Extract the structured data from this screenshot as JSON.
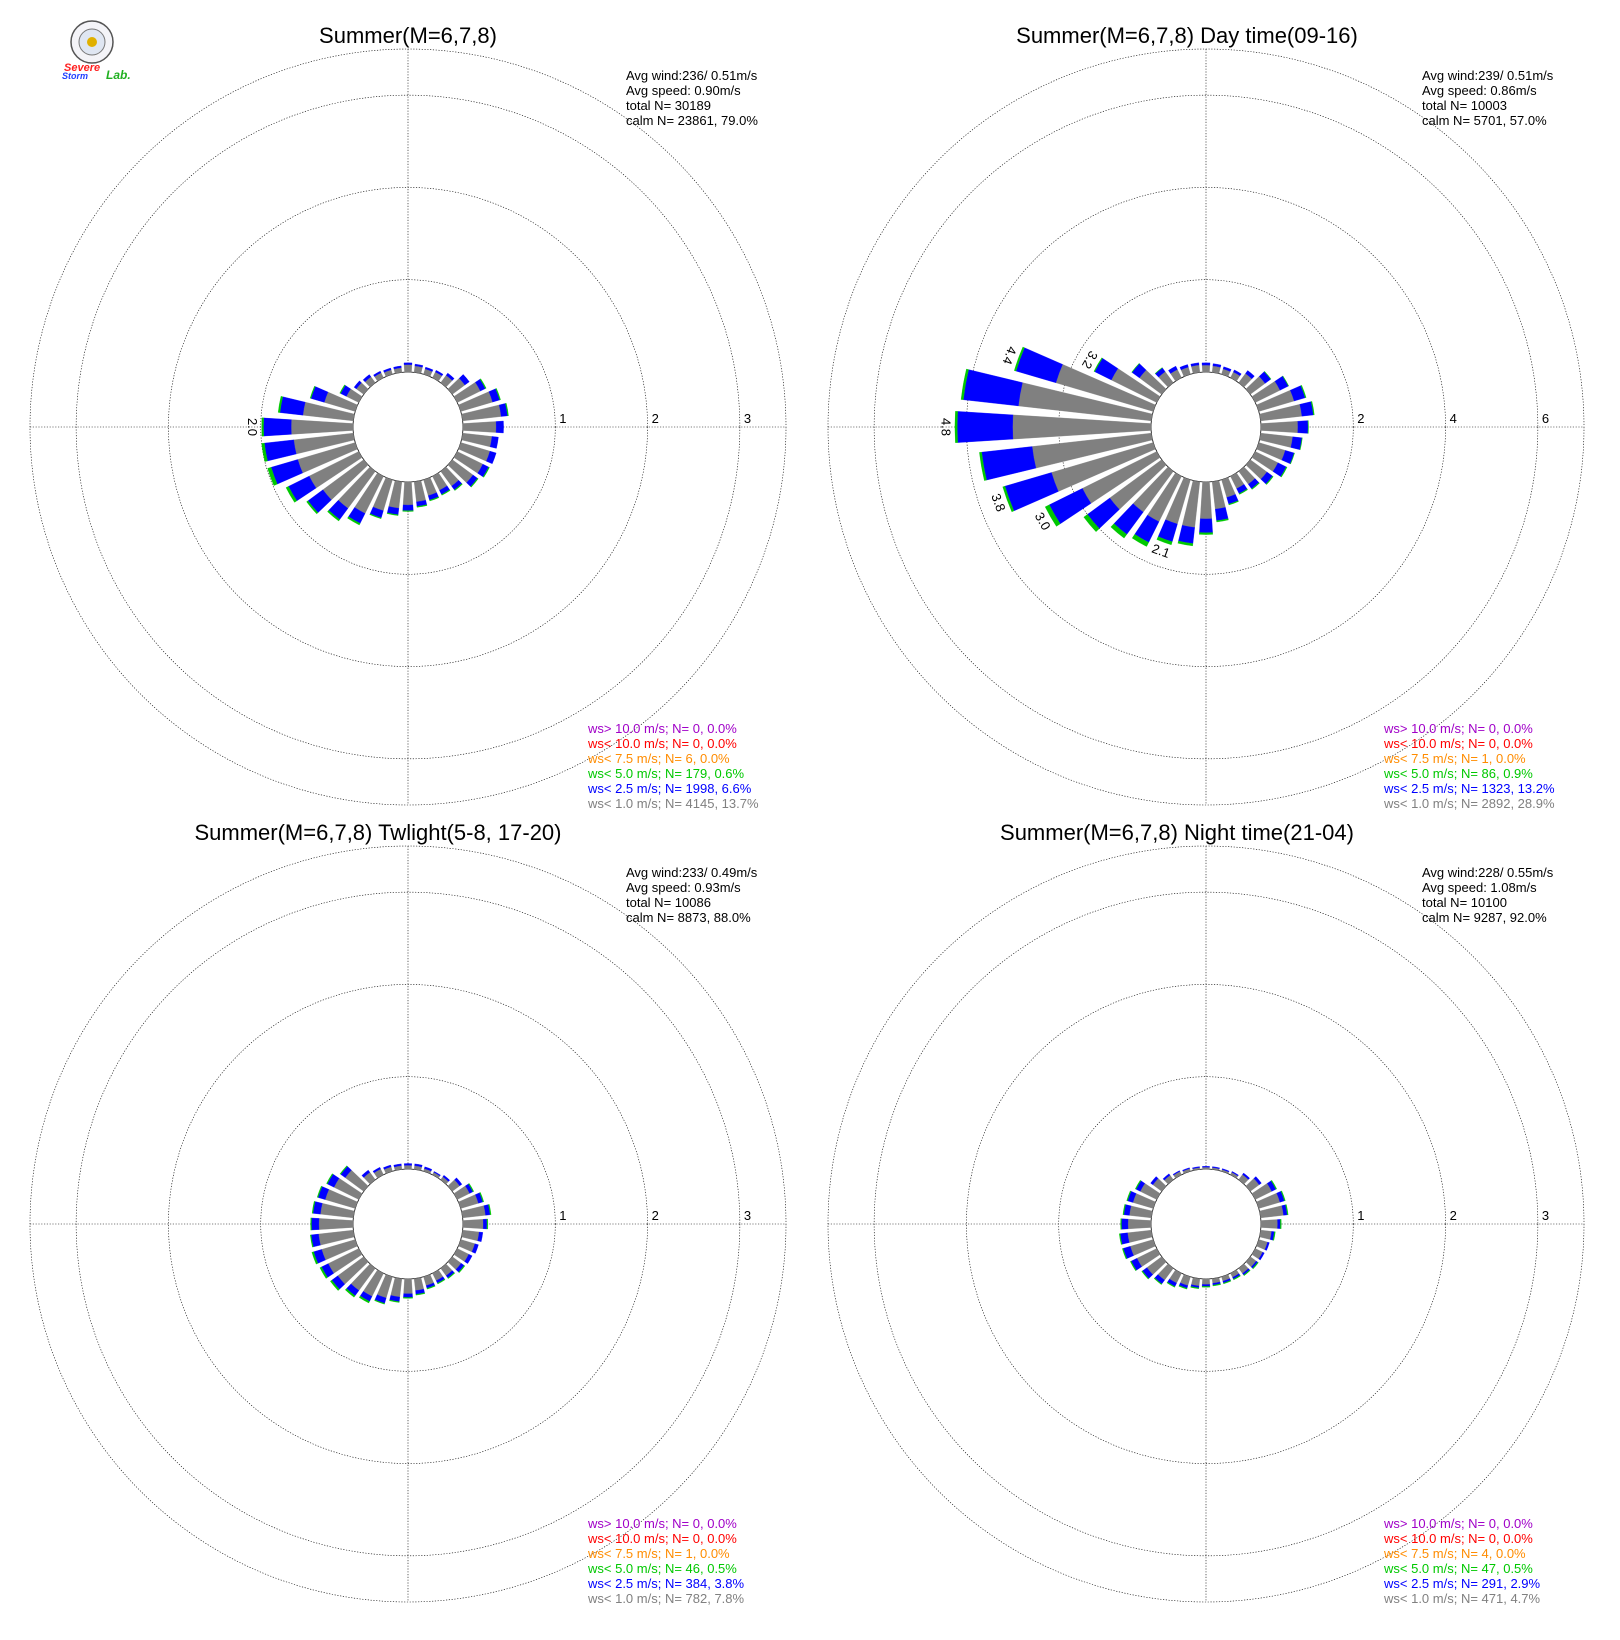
{
  "logo": {
    "word1": "Severe",
    "word2": "Storm",
    "word3": "Lab."
  },
  "chart_data": [
    {
      "type": "windrose",
      "title": "Summer(M=6,7,8)",
      "stats": {
        "avg_wind": "Avg wind:236/ 0.51m/s",
        "avg_speed": "Avg speed: 0.90m/s",
        "total": "total N=      30189",
        "calm": "calm N=  23861,  79.0%"
      },
      "radial_ticks": [
        "1",
        "2",
        "3"
      ],
      "rmax": 3.5,
      "bar_labels": [
        {
          "direction_deg": 270,
          "text": "2.0"
        }
      ],
      "legend": [
        {
          "text": "ws> 10.0 m/s; N=     0,  0.0%",
          "color": "#a000c8"
        },
        {
          "text": "ws< 10.0 m/s; N=     0,  0.0%",
          "color": "#ff0000"
        },
        {
          "text": "ws<  7.5 m/s; N=     6,  0.0%",
          "color": "#ff8c00"
        },
        {
          "text": "ws<  5.0 m/s; N=   179,  0.6%",
          "color": "#00c800"
        },
        {
          "text": "ws<  2.5 m/s; N=  1998,  6.6%",
          "color": "#0000ff"
        },
        {
          "text": "ws<  1.0 m/s; N=  4145, 13.7%",
          "color": "#808080"
        }
      ],
      "sectors": [
        [
          0.08,
          0.02,
          0
        ],
        [
          0.07,
          0.02,
          0
        ],
        [
          0.06,
          0.02,
          0
        ],
        [
          0.07,
          0.02,
          0
        ],
        [
          0.1,
          0.03,
          0
        ],
        [
          0.17,
          0.06,
          0
        ],
        [
          0.28,
          0.06,
          0.01
        ],
        [
          0.36,
          0.08,
          0.01
        ],
        [
          0.42,
          0.07,
          0.01
        ],
        [
          0.36,
          0.08,
          0
        ],
        [
          0.32,
          0.07,
          0
        ],
        [
          0.33,
          0.07,
          0
        ],
        [
          0.31,
          0.07,
          0.01
        ],
        [
          0.28,
          0.06,
          0.01
        ],
        [
          0.2,
          0.05,
          0.01
        ],
        [
          0.17,
          0.05,
          0.01
        ],
        [
          0.18,
          0.05,
          0.01
        ],
        [
          0.22,
          0.05,
          0.01
        ],
        [
          0.25,
          0.06,
          0.01
        ],
        [
          0.29,
          0.07,
          0.01
        ],
        [
          0.35,
          0.08,
          0.01
        ],
        [
          0.45,
          0.12,
          0.02
        ],
        [
          0.5,
          0.15,
          0.02
        ],
        [
          0.55,
          0.2,
          0.02
        ],
        [
          0.6,
          0.25,
          0.03
        ],
        [
          0.65,
          0.3,
          0.04
        ],
        [
          0.65,
          0.32,
          0.03
        ],
        [
          0.67,
          0.3,
          0.02
        ],
        [
          0.55,
          0.25,
          0.02
        ],
        [
          0.35,
          0.15,
          0.01
        ],
        [
          0.15,
          0.07,
          0.01
        ],
        [
          0.1,
          0.03,
          0
        ],
        [
          0.08,
          0.03,
          0
        ],
        [
          0.06,
          0.02,
          0
        ],
        [
          0.05,
          0.02,
          0
        ],
        [
          0.05,
          0.02,
          0
        ]
      ]
    },
    {
      "type": "windrose",
      "title": "Summer(M=6,7,8) Day time(09-16)",
      "stats": {
        "avg_wind": "Avg wind:239/ 0.51m/s",
        "avg_speed": "Avg speed: 0.86m/s",
        "total": "total N=      10003",
        "calm": "calm N=   5701,  57.0%"
      },
      "radial_ticks": [
        "2",
        "4",
        "6"
      ],
      "rmax": 7,
      "bar_labels": [
        {
          "direction_deg": 200,
          "text": "2.1"
        },
        {
          "direction_deg": 240,
          "text": "3.0"
        },
        {
          "direction_deg": 250,
          "text": "3.8"
        },
        {
          "direction_deg": 270,
          "text": "4.8"
        },
        {
          "direction_deg": 290,
          "text": "4.4"
        },
        {
          "direction_deg": 300,
          "text": "3.2"
        }
      ],
      "legend": [
        {
          "text": "ws> 10.0 m/s; N=     0,  0.0%",
          "color": "#a000c8"
        },
        {
          "text": "ws< 10.0 m/s; N=     0,  0.0%",
          "color": "#ff0000"
        },
        {
          "text": "ws<  7.5 m/s; N=     1,  0.0%",
          "color": "#ff8c00"
        },
        {
          "text": "ws<  5.0 m/s; N=    86,  0.9%",
          "color": "#00c800"
        },
        {
          "text": "ws<  2.5 m/s; N=  1323, 13.2%",
          "color": "#0000ff"
        },
        {
          "text": "ws<  1.0 m/s; N=  2892, 28.9%",
          "color": "#808080"
        }
      ],
      "sectors": [
        [
          0.15,
          0.05,
          0
        ],
        [
          0.14,
          0.05,
          0
        ],
        [
          0.12,
          0.05,
          0
        ],
        [
          0.14,
          0.05,
          0
        ],
        [
          0.25,
          0.08,
          0
        ],
        [
          0.4,
          0.15,
          0.01
        ],
        [
          0.6,
          0.2,
          0.01
        ],
        [
          0.8,
          0.25,
          0.02
        ],
        [
          0.9,
          0.25,
          0.02
        ],
        [
          0.8,
          0.22,
          0.01
        ],
        [
          0.7,
          0.2,
          0.01
        ],
        [
          0.6,
          0.2,
          0.01
        ],
        [
          0.55,
          0.2,
          0.02
        ],
        [
          0.45,
          0.15,
          0.02
        ],
        [
          0.35,
          0.12,
          0.02
        ],
        [
          0.3,
          0.12,
          0.02
        ],
        [
          0.4,
          0.15,
          0.02
        ],
        [
          0.6,
          0.25,
          0.03
        ],
        [
          0.8,
          0.3,
          0.04
        ],
        [
          1.0,
          0.35,
          0.05
        ],
        [
          1.0,
          0.4,
          0.07
        ],
        [
          1.1,
          0.5,
          0.1
        ],
        [
          1.1,
          0.6,
          0.1
        ],
        [
          1.4,
          0.6,
          0.1
        ],
        [
          1.8,
          0.8,
          0.1
        ],
        [
          2.3,
          1.05,
          0.05
        ],
        [
          2.6,
          1.1,
          0.05
        ],
        [
          3.0,
          1.2,
          0.05
        ],
        [
          2.9,
          1.2,
          0.05
        ],
        [
          2.2,
          0.9,
          0.04
        ],
        [
          1.1,
          0.4,
          0.02
        ],
        [
          0.6,
          0.2,
          0.01
        ],
        [
          0.3,
          0.1,
          0.01
        ],
        [
          0.2,
          0.08,
          0
        ],
        [
          0.16,
          0.06,
          0
        ],
        [
          0.16,
          0.05,
          0
        ]
      ]
    },
    {
      "type": "windrose",
      "title": "Summer(M=6,7,8) Twlight(5-8, 17-20)",
      "stats": {
        "avg_wind": "Avg wind:233/ 0.49m/s",
        "avg_speed": "Avg speed: 0.93m/s",
        "total": "total N=      10086",
        "calm": "calm N=   8873,  88.0%"
      },
      "radial_ticks": [
        "1",
        "2",
        "3"
      ],
      "rmax": 3.5,
      "bar_labels": [],
      "legend": [
        {
          "text": "ws> 10.0 m/s; N=     0,  0.0%",
          "color": "#a000c8"
        },
        {
          "text": "ws< 10.0 m/s; N=     0,  0.0%",
          "color": "#ff0000"
        },
        {
          "text": "ws<  7.5 m/s; N=     1,  0.0%",
          "color": "#ff8c00"
        },
        {
          "text": "ws<  5.0 m/s; N=    46,  0.5%",
          "color": "#00c800"
        },
        {
          "text": "ws<  2.5 m/s; N=   384,  3.8%",
          "color": "#0000ff"
        },
        {
          "text": "ws<  1.0 m/s; N=   782,  7.8%",
          "color": "#808080"
        }
      ],
      "sectors": [
        [
          0.04,
          0.02,
          0
        ],
        [
          0.04,
          0.02,
          0
        ],
        [
          0.03,
          0.02,
          0
        ],
        [
          0.03,
          0.01,
          0
        ],
        [
          0.04,
          0.02,
          0
        ],
        [
          0.1,
          0.03,
          0
        ],
        [
          0.15,
          0.04,
          0.01
        ],
        [
          0.2,
          0.05,
          0.01
        ],
        [
          0.25,
          0.05,
          0.01
        ],
        [
          0.22,
          0.04,
          0.01
        ],
        [
          0.18,
          0.04,
          0
        ],
        [
          0.16,
          0.04,
          0
        ],
        [
          0.14,
          0.04,
          0
        ],
        [
          0.12,
          0.04,
          0.01
        ],
        [
          0.1,
          0.03,
          0.01
        ],
        [
          0.09,
          0.03,
          0.01
        ],
        [
          0.1,
          0.03,
          0.01
        ],
        [
          0.13,
          0.04,
          0.01
        ],
        [
          0.16,
          0.04,
          0.01
        ],
        [
          0.2,
          0.05,
          0.01
        ],
        [
          0.24,
          0.06,
          0.01
        ],
        [
          0.28,
          0.06,
          0.02
        ],
        [
          0.3,
          0.07,
          0.02
        ],
        [
          0.35,
          0.08,
          0.02
        ],
        [
          0.37,
          0.08,
          0.02
        ],
        [
          0.38,
          0.09,
          0.02
        ],
        [
          0.38,
          0.08,
          0.01
        ],
        [
          0.37,
          0.08,
          0.01
        ],
        [
          0.36,
          0.08,
          0.01
        ],
        [
          0.34,
          0.08,
          0.01
        ],
        [
          0.3,
          0.08,
          0.01
        ],
        [
          0.25,
          0.06,
          0.01
        ],
        [
          0.1,
          0.03,
          0
        ],
        [
          0.07,
          0.02,
          0
        ],
        [
          0.05,
          0.02,
          0
        ],
        [
          0.04,
          0.02,
          0
        ]
      ]
    },
    {
      "type": "windrose",
      "title": "Summer(M=6,7,8) Night time(21-04)",
      "stats": {
        "avg_wind": "Avg wind:228/ 0.55m/s",
        "avg_speed": "Avg speed: 1.08m/s",
        "total": "total N=      10100",
        "calm": "calm N=   9287,  92.0%"
      },
      "radial_ticks": [
        "1",
        "2",
        "3"
      ],
      "rmax": 3.5,
      "bar_labels": [],
      "legend": [
        {
          "text": "ws> 10.0 m/s; N=     0,  0.0%",
          "color": "#a000c8"
        },
        {
          "text": "ws< 10.0 m/s; N=     0,  0.0%",
          "color": "#ff0000"
        },
        {
          "text": "ws<  7.5 m/s; N=     4,  0.0%",
          "color": "#ff8c00"
        },
        {
          "text": "ws<  5.0 m/s; N=    47,  0.5%",
          "color": "#00c800"
        },
        {
          "text": "ws<  2.5 m/s; N=   291,  2.9%",
          "color": "#0000ff"
        },
        {
          "text": "ws<  1.0 m/s; N=   471,  4.7%",
          "color": "#808080"
        }
      ],
      "sectors": [
        [
          0.02,
          0.01,
          0
        ],
        [
          0.02,
          0.01,
          0
        ],
        [
          0.02,
          0.01,
          0
        ],
        [
          0.03,
          0.01,
          0
        ],
        [
          0.07,
          0.02,
          0
        ],
        [
          0.12,
          0.03,
          0
        ],
        [
          0.2,
          0.05,
          0.01
        ],
        [
          0.24,
          0.05,
          0.01
        ],
        [
          0.25,
          0.04,
          0.01
        ],
        [
          0.18,
          0.03,
          0.01
        ],
        [
          0.12,
          0.03,
          0.01
        ],
        [
          0.1,
          0.02,
          0
        ],
        [
          0.09,
          0.02,
          0
        ],
        [
          0.08,
          0.02,
          0.01
        ],
        [
          0.07,
          0.02,
          0.01
        ],
        [
          0.05,
          0.02,
          0.01
        ],
        [
          0.05,
          0.02,
          0.01
        ],
        [
          0.05,
          0.02,
          0.01
        ],
        [
          0.06,
          0.02,
          0.01
        ],
        [
          0.08,
          0.02,
          0.01
        ],
        [
          0.1,
          0.03,
          0.01
        ],
        [
          0.12,
          0.04,
          0.01
        ],
        [
          0.16,
          0.05,
          0.01
        ],
        [
          0.2,
          0.06,
          0.01
        ],
        [
          0.24,
          0.07,
          0.01
        ],
        [
          0.26,
          0.08,
          0.01
        ],
        [
          0.26,
          0.08,
          0.01
        ],
        [
          0.25,
          0.07,
          0.01
        ],
        [
          0.24,
          0.06,
          0.01
        ],
        [
          0.23,
          0.06,
          0.01
        ],
        [
          0.2,
          0.05,
          0.01
        ],
        [
          0.12,
          0.03,
          0
        ],
        [
          0.06,
          0.02,
          0
        ],
        [
          0.04,
          0.01,
          0
        ],
        [
          0.03,
          0.01,
          0
        ],
        [
          0.02,
          0.01,
          0
        ]
      ]
    }
  ]
}
